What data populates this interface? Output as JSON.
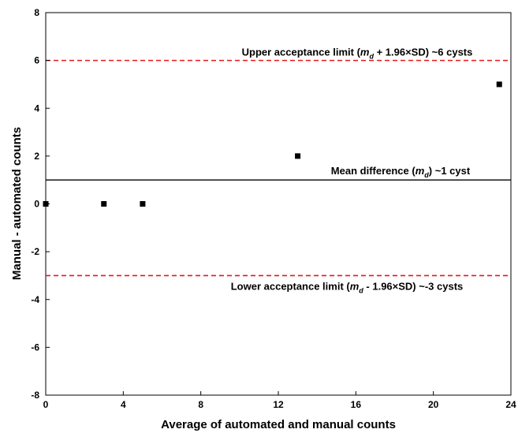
{
  "chart_data": {
    "type": "scatter",
    "xlabel": "Average of automated and manual counts",
    "ylabel": "Manual - automated counts",
    "xlim": [
      0,
      24
    ],
    "ylim": [
      -8,
      8
    ],
    "xticks": [
      0,
      4,
      8,
      12,
      16,
      20,
      24
    ],
    "yticks": [
      -8,
      -6,
      -4,
      -2,
      0,
      2,
      4,
      6,
      8
    ],
    "grid": false,
    "series": [
      {
        "marker": "square",
        "color": "#000000",
        "points": [
          {
            "x": 0,
            "y": 0
          },
          {
            "x": 3,
            "y": 0
          },
          {
            "x": 5,
            "y": 0
          },
          {
            "x": 13,
            "y": 2
          },
          {
            "x": 23.4,
            "y": 5
          }
        ]
      }
    ],
    "reference_lines": [
      {
        "y": 6,
        "style": "dashed",
        "color": "#e8161b",
        "label": {
          "before": "Upper acceptance limit (",
          "sym": "m",
          "sub": "d",
          "after": " + 1.96×SD) ~6 cysts"
        }
      },
      {
        "y": 1,
        "style": "solid",
        "color": "#000000",
        "label": {
          "before": "Mean difference (",
          "sym": "m",
          "sub": "d",
          "after": ") ~1 cyst"
        }
      },
      {
        "y": -3,
        "style": "dashed",
        "color": "#e8161b",
        "label": {
          "before": "Lower acceptance limit (",
          "sym": "m",
          "sub": "d",
          "after": " - 1.96×SD) ~-3 cysts"
        }
      }
    ]
  }
}
